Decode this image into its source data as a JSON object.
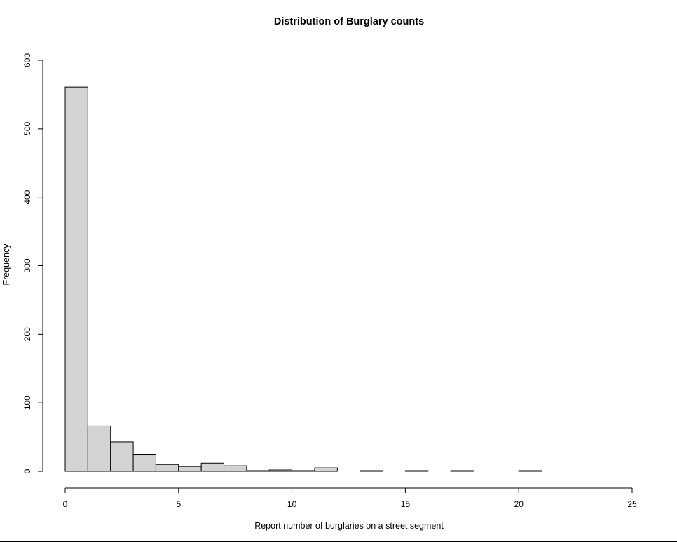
{
  "chart_data": {
    "type": "bar",
    "title": "Distribution of Burglary counts",
    "xlabel": "Report number of burglaries on a street segment",
    "ylabel": "Frequency",
    "bin_width": 1,
    "x_start": 0,
    "values": [
      561,
      66,
      43,
      24,
      10,
      7,
      12,
      8,
      1,
      2,
      1,
      5,
      0,
      1,
      0,
      1,
      0,
      1,
      0,
      0,
      1
    ],
    "xlim": [
      0,
      25
    ],
    "ylim": [
      0,
      600
    ],
    "x_ticks": [
      0,
      5,
      10,
      15,
      20,
      25
    ],
    "y_ticks": [
      0,
      100,
      200,
      300,
      400,
      500,
      600
    ],
    "bar_fill": "#d3d3d3",
    "bar_stroke": "#000000",
    "grid": false,
    "legend": "none"
  }
}
